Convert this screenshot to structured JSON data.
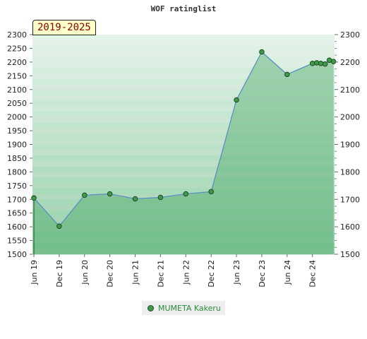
{
  "chart_data": {
    "type": "area",
    "title": "WOF ratinglist",
    "period_label": "2019-2025",
    "ylim": [
      1500,
      2300
    ],
    "y_ticks": [
      1500,
      1550,
      1600,
      1650,
      1700,
      1750,
      1800,
      1850,
      1900,
      1950,
      2000,
      2050,
      2100,
      2150,
      2200,
      2250,
      2300
    ],
    "y_ticks_right": [
      1500,
      1600,
      1700,
      1800,
      1900,
      2000,
      2100,
      2200,
      2300
    ],
    "x_ticks": [
      "Jun 19",
      "Dec 19",
      "Jun 20",
      "Dec 20",
      "Jun 21",
      "Dec 21",
      "Jun 22",
      "Dec 22",
      "Jun 23",
      "Dec 23",
      "Jun 24",
      "Dec 24"
    ],
    "series": [
      {
        "name": "MUMETA Kakeru",
        "x": [
          "2019-06",
          "2019-12",
          "2020-06",
          "2020-12",
          "2021-06",
          "2021-12",
          "2022-06",
          "2022-12",
          "2023-06",
          "2023-12",
          "2024-06",
          "2024-12",
          "2025-01",
          "2025-02",
          "2025-03",
          "2025-04",
          "2025-05"
        ],
        "values": [
          1705,
          1602,
          1715,
          1720,
          1702,
          1707,
          1720,
          1728,
          2062,
          2237,
          2155,
          2195,
          2197,
          2195,
          2193,
          2207,
          2202
        ]
      }
    ],
    "grid": true,
    "legend_position": "bottom"
  }
}
